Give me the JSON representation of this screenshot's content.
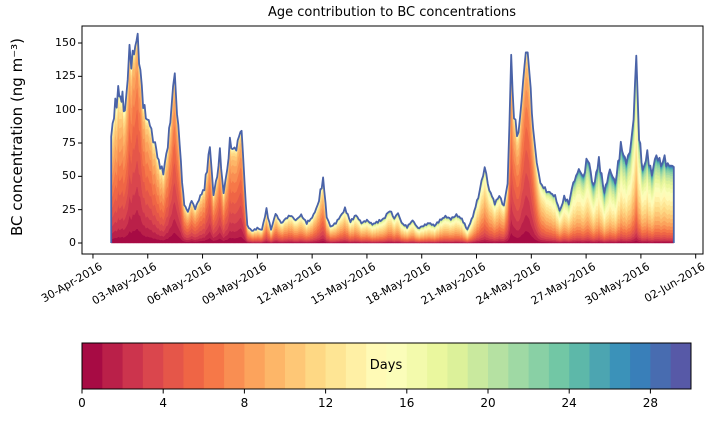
{
  "title": "Age contribution to BC concentrations",
  "ylabel": "BC concentration (ng m⁻³)",
  "colorbar": {
    "label": "Days",
    "ticks": [
      0,
      4,
      8,
      12,
      16,
      20,
      24,
      28
    ],
    "bins": 30,
    "range": [
      0,
      30
    ]
  },
  "chart_data": {
    "type": "area",
    "stacked": true,
    "title": "Age contribution to BC concentrations",
    "ylabel": "BC concentration (ng m⁻³)",
    "yticks": [
      0,
      25,
      50,
      75,
      100,
      125,
      150
    ],
    "ylim_shown": [
      0,
      150
    ],
    "x_tick_labels": [
      "30-Apr-2016",
      "03-May-2016",
      "06-May-2016",
      "09-May-2016",
      "12-May-2016",
      "15-May-2016",
      "18-May-2016",
      "21-May-2016",
      "24-May-2016",
      "27-May-2016",
      "30-May-2016",
      "02-Jun-2016"
    ],
    "x_tick_days": [
      0,
      3,
      6,
      9,
      12,
      15,
      18,
      21,
      24,
      27,
      30,
      33
    ],
    "age_bins": {
      "min_days": 0,
      "max_days": 30,
      "n_bands": 30
    },
    "colormap_anchors": [
      "#9e0142",
      "#d53e4f",
      "#f46d43",
      "#fdae61",
      "#fee08b",
      "#ffffbf",
      "#e6f598",
      "#abdda4",
      "#66c2a5",
      "#3288bd",
      "#5e4fa2"
    ],
    "outline_color": "#4a63a8",
    "points_format": [
      "days_since_30-Apr-2016",
      "total_bc_ng_m3",
      "mean_age_days_estimated_from_colors"
    ],
    "points": [
      [
        1.0,
        80,
        6.5
      ],
      [
        1.15,
        97,
        6.5
      ],
      [
        1.3,
        108,
        6.5
      ],
      [
        1.38,
        113,
        6.3
      ],
      [
        1.5,
        104,
        6.2
      ],
      [
        1.62,
        109,
        6.0
      ],
      [
        1.75,
        100,
        5.8
      ],
      [
        1.9,
        121,
        5.2
      ],
      [
        2.0,
        142,
        4.8
      ],
      [
        2.1,
        133,
        4.8
      ],
      [
        2.25,
        147,
        4.5
      ],
      [
        2.45,
        151,
        4.3
      ],
      [
        2.6,
        128,
        4.5
      ],
      [
        2.75,
        105,
        5.0
      ],
      [
        2.9,
        95,
        5.2
      ],
      [
        3.05,
        91,
        5.3
      ],
      [
        3.2,
        86,
        5.5
      ],
      [
        3.4,
        75,
        5.8
      ],
      [
        3.6,
        62,
        6.0
      ],
      [
        3.85,
        52,
        6.2
      ],
      [
        4.1,
        74,
        5.5
      ],
      [
        4.3,
        100,
        5.0
      ],
      [
        4.48,
        131,
        4.6
      ],
      [
        4.6,
        96,
        4.8
      ],
      [
        4.75,
        77,
        5.0
      ],
      [
        4.88,
        46,
        5.5
      ],
      [
        5.0,
        28,
        6.0
      ],
      [
        5.2,
        24,
        6.2
      ],
      [
        5.4,
        31,
        6.0
      ],
      [
        5.6,
        25,
        6.2
      ],
      [
        5.8,
        33,
        6.0
      ],
      [
        6.1,
        41,
        5.8
      ],
      [
        6.4,
        72,
        5.2
      ],
      [
        6.6,
        36,
        5.8
      ],
      [
        6.8,
        50,
        5.5
      ],
      [
        6.95,
        68,
        5.3
      ],
      [
        7.15,
        38,
        5.8
      ],
      [
        7.35,
        55,
        5.5
      ],
      [
        7.5,
        76,
        5.2
      ],
      [
        7.65,
        70,
        5.2
      ],
      [
        7.85,
        72,
        5.2
      ],
      [
        8.0,
        80,
        5.0
      ],
      [
        8.14,
        85,
        5.0
      ],
      [
        8.3,
        45,
        5.5
      ],
      [
        8.45,
        13,
        6.5
      ],
      [
        8.7,
        9,
        7.5
      ],
      [
        9.0,
        11,
        8.0
      ],
      [
        9.25,
        10,
        8.0
      ],
      [
        9.5,
        25,
        7.5
      ],
      [
        9.75,
        10,
        8.0
      ],
      [
        10.0,
        22,
        7.5
      ],
      [
        10.3,
        15,
        8.0
      ],
      [
        10.55,
        18,
        8.0
      ],
      [
        10.8,
        21,
        8.0
      ],
      [
        11.1,
        17,
        8.5
      ],
      [
        11.4,
        21,
        8.5
      ],
      [
        11.7,
        15,
        8.5
      ],
      [
        12.0,
        19,
        8.0
      ],
      [
        12.3,
        28,
        7.5
      ],
      [
        12.6,
        48,
        7.0
      ],
      [
        12.8,
        20,
        7.5
      ],
      [
        13.0,
        12,
        8.0
      ],
      [
        13.3,
        15,
        8.5
      ],
      [
        13.55,
        20,
        8.5
      ],
      [
        13.8,
        26,
        8.5
      ],
      [
        14.1,
        16,
        9.0
      ],
      [
        14.4,
        21,
        9.0
      ],
      [
        14.7,
        15,
        9.5
      ],
      [
        15.0,
        17,
        9.5
      ],
      [
        15.3,
        14,
        10.0
      ],
      [
        15.6,
        16,
        10.0
      ],
      [
        15.9,
        18,
        10.0
      ],
      [
        16.25,
        25,
        9.5
      ],
      [
        16.5,
        18,
        9.5
      ],
      [
        16.7,
        23,
        9.5
      ],
      [
        16.9,
        15,
        10.0
      ],
      [
        17.2,
        12,
        10.0
      ],
      [
        17.5,
        17,
        10.0
      ],
      [
        17.8,
        11,
        10.5
      ],
      [
        18.1,
        13,
        10.5
      ],
      [
        18.4,
        15,
        10.5
      ],
      [
        18.7,
        13,
        10.5
      ],
      [
        19.0,
        17,
        10.0
      ],
      [
        19.3,
        20,
        10.0
      ],
      [
        19.6,
        18,
        10.0
      ],
      [
        19.9,
        21,
        10.0
      ],
      [
        20.2,
        18,
        10.0
      ],
      [
        20.5,
        10,
        10.5
      ],
      [
        20.8,
        20,
        10.0
      ],
      [
        21.1,
        35,
        9.5
      ],
      [
        21.45,
        56,
        9.0
      ],
      [
        21.7,
        40,
        9.0
      ],
      [
        22.0,
        30,
        9.0
      ],
      [
        22.25,
        35,
        8.5
      ],
      [
        22.5,
        28,
        8.0
      ],
      [
        22.7,
        45,
        6.5
      ],
      [
        22.9,
        136,
        5.0
      ],
      [
        23.05,
        95,
        5.2
      ],
      [
        23.3,
        80,
        5.5
      ],
      [
        23.55,
        121,
        4.8
      ],
      [
        23.7,
        143,
        4.6
      ],
      [
        23.9,
        128,
        4.8
      ],
      [
        24.1,
        85,
        5.5
      ],
      [
        24.3,
        60,
        7.0
      ],
      [
        24.5,
        45,
        8.5
      ],
      [
        24.75,
        40,
        9.5
      ],
      [
        25.0,
        38,
        10.0
      ],
      [
        25.3,
        35,
        10.5
      ],
      [
        25.55,
        24,
        11.0
      ],
      [
        25.8,
        34,
        11.0
      ],
      [
        26.05,
        30,
        11.5
      ],
      [
        26.3,
        45,
        12.0
      ],
      [
        26.6,
        55,
        12.5
      ],
      [
        26.85,
        50,
        13.0
      ],
      [
        27.1,
        64,
        13.0
      ],
      [
        27.4,
        42,
        13.5
      ],
      [
        27.7,
        62,
        13.5
      ],
      [
        28.0,
        38,
        14.0
      ],
      [
        28.3,
        55,
        14.0
      ],
      [
        28.6,
        45,
        14.0
      ],
      [
        28.9,
        73,
        13.5
      ],
      [
        29.2,
        60,
        13.5
      ],
      [
        29.4,
        66,
        13.0
      ],
      [
        29.6,
        95,
        12.5
      ],
      [
        29.75,
        141,
        12.0
      ],
      [
        29.9,
        78,
        12.5
      ],
      [
        30.1,
        55,
        13.0
      ],
      [
        30.35,
        66,
        13.0
      ],
      [
        30.6,
        52,
        13.5
      ],
      [
        30.85,
        66,
        13.0
      ],
      [
        31.1,
        60,
        13.0
      ],
      [
        31.3,
        62,
        13.0
      ],
      [
        31.55,
        58,
        13.0
      ],
      [
        31.8,
        57,
        13.0
      ]
    ],
    "colorbar": {
      "label": "Days",
      "ticks": [
        0,
        4,
        8,
        12,
        16,
        20,
        24,
        28
      ],
      "bins": 30,
      "range": [
        0,
        30
      ]
    },
    "legend_position": "bottom-colorbar",
    "grid": false
  }
}
